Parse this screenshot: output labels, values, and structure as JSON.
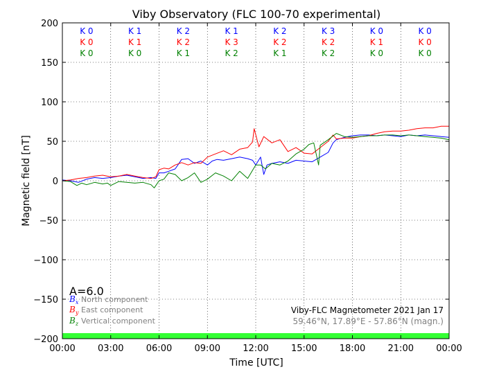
{
  "chart_data": {
    "type": "line",
    "title": "Viby Observatory (FLC 100-70 experimental)",
    "xlabel": "Time [UTC]",
    "ylabel": "Magnetic field [nT]",
    "xlim": [
      0,
      24
    ],
    "ylim": [
      -200,
      200
    ],
    "grid": true,
    "x_ticks": [
      0,
      3,
      6,
      9,
      12,
      15,
      18,
      21,
      24
    ],
    "x_tick_labels": [
      "00:00",
      "03:00",
      "06:00",
      "09:00",
      "12:00",
      "15:00",
      "18:00",
      "21:00",
      "00:00"
    ],
    "y_ticks": [
      200,
      150,
      100,
      50,
      0,
      -50,
      -100,
      -150,
      -200
    ],
    "y_tick_labels": [
      "200",
      "150",
      "100",
      "50",
      "0",
      "−50",
      "−100",
      "−150",
      "−200"
    ],
    "series": [
      {
        "symbol": "B",
        "subscript": "x",
        "name": "North component",
        "color": "#0000ff",
        "x": [
          0,
          0.5,
          1,
          1.5,
          2,
          2.5,
          3,
          3.5,
          4,
          4.5,
          5,
          5.5,
          5.8,
          6,
          6.3,
          6.6,
          7,
          7.4,
          7.8,
          8.2,
          8.6,
          9,
          9.3,
          9.6,
          10,
          10.5,
          11,
          11.5,
          11.8,
          12,
          12.3,
          12.5,
          12.7,
          13,
          13.5,
          14,
          14.5,
          15,
          15.5,
          16,
          16.5,
          16.8,
          17,
          17.5,
          18,
          18.5,
          19,
          19.5,
          20,
          20.5,
          21,
          21.5,
          22,
          22.5,
          23,
          23.5,
          24
        ],
        "y": [
          1,
          0,
          -2,
          2,
          4,
          3,
          4,
          6,
          7,
          5,
          3,
          4,
          3,
          10,
          10,
          12,
          15,
          27,
          28,
          22,
          25,
          20,
          25,
          27,
          26,
          28,
          30,
          28,
          26,
          20,
          30,
          8,
          20,
          22,
          24,
          22,
          26,
          25,
          24,
          30,
          36,
          48,
          52,
          55,
          57,
          58,
          58,
          57,
          58,
          57,
          56,
          58,
          57,
          58,
          57,
          56,
          55
        ]
      },
      {
        "symbol": "B",
        "subscript": "y",
        "name": "East component",
        "color": "#ff0000",
        "x": [
          0,
          0.5,
          1,
          1.5,
          2,
          2.5,
          3,
          3.5,
          4,
          4.5,
          5,
          5.5,
          5.8,
          6,
          6.3,
          6.6,
          7,
          7.4,
          7.8,
          8.2,
          8.6,
          9,
          9.5,
          10,
          10.5,
          11,
          11.5,
          11.8,
          11.9,
          12.2,
          12.5,
          13,
          13.5,
          14,
          14.5,
          15,
          15.5,
          16,
          16.5,
          16.8,
          17,
          17.5,
          18,
          18.5,
          19,
          19.5,
          20,
          20.5,
          21,
          21.5,
          22,
          22.5,
          23,
          23.5,
          24
        ],
        "y": [
          0,
          1,
          3,
          4,
          6,
          7,
          5,
          6,
          8,
          6,
          4,
          3,
          5,
          14,
          16,
          15,
          20,
          23,
          20,
          23,
          22,
          30,
          34,
          38,
          33,
          40,
          42,
          49,
          66,
          43,
          56,
          48,
          52,
          37,
          42,
          35,
          34,
          42,
          50,
          58,
          53,
          54,
          54,
          56,
          57,
          60,
          62,
          63,
          63,
          64,
          66,
          67,
          67,
          69,
          69
        ]
      },
      {
        "symbol": "B",
        "subscript": "z",
        "name": "Vertical component",
        "color": "#008000",
        "x": [
          0,
          0.5,
          0.9,
          1.2,
          1.5,
          2,
          2.5,
          2.8,
          3,
          3.5,
          4,
          4.5,
          5,
          5.5,
          5.7,
          6,
          6.3,
          6.6,
          7,
          7.4,
          7.8,
          8.2,
          8.6,
          9,
          9.5,
          10,
          10.5,
          11,
          11.5,
          12,
          12.3,
          12.6,
          13,
          13.5,
          14,
          14.5,
          15,
          15.3,
          15.6,
          15.9,
          16,
          16.5,
          17,
          17.5,
          18,
          18.5,
          19,
          19.5,
          20,
          20.5,
          21,
          21.5,
          22,
          22.5,
          23,
          23.5,
          24
        ],
        "y": [
          0,
          -1,
          -6,
          -3,
          -5,
          -2,
          -4,
          -3,
          -6,
          -1,
          -2,
          -3,
          -2,
          -5,
          -9,
          0,
          2,
          10,
          8,
          0,
          4,
          10,
          -2,
          2,
          10,
          6,
          0,
          12,
          3,
          20,
          20,
          15,
          22,
          20,
          25,
          34,
          40,
          46,
          48,
          20,
          45,
          52,
          60,
          56,
          55,
          56,
          57,
          57,
          58,
          58,
          57,
          58,
          57,
          56,
          55,
          54,
          52
        ]
      }
    ],
    "k_indices": {
      "north": [
        "K 0",
        "K 1",
        "K 2",
        "K 1",
        "K 2",
        "K 3",
        "K 0",
        "K 0"
      ],
      "east": [
        "K 0",
        "K 1",
        "K 2",
        "K 3",
        "K 2",
        "K 2",
        "K 1",
        "K 0"
      ],
      "vertical": [
        "K 0",
        "K 0",
        "K 1",
        "K 2",
        "K 1",
        "K 2",
        "K 0",
        "K 0"
      ]
    },
    "a_index": "A=6.0",
    "station_line": "Viby-FLC Magnetometer 2021 Jan 17",
    "location_line": "59.46°N, 17.89°E - 57.86°N (magn.)",
    "colors": {
      "north": "#0000ff",
      "east": "#ff0000",
      "vertical": "#008000",
      "status_bar": "#33ff33",
      "legend_text": "#808080"
    }
  }
}
